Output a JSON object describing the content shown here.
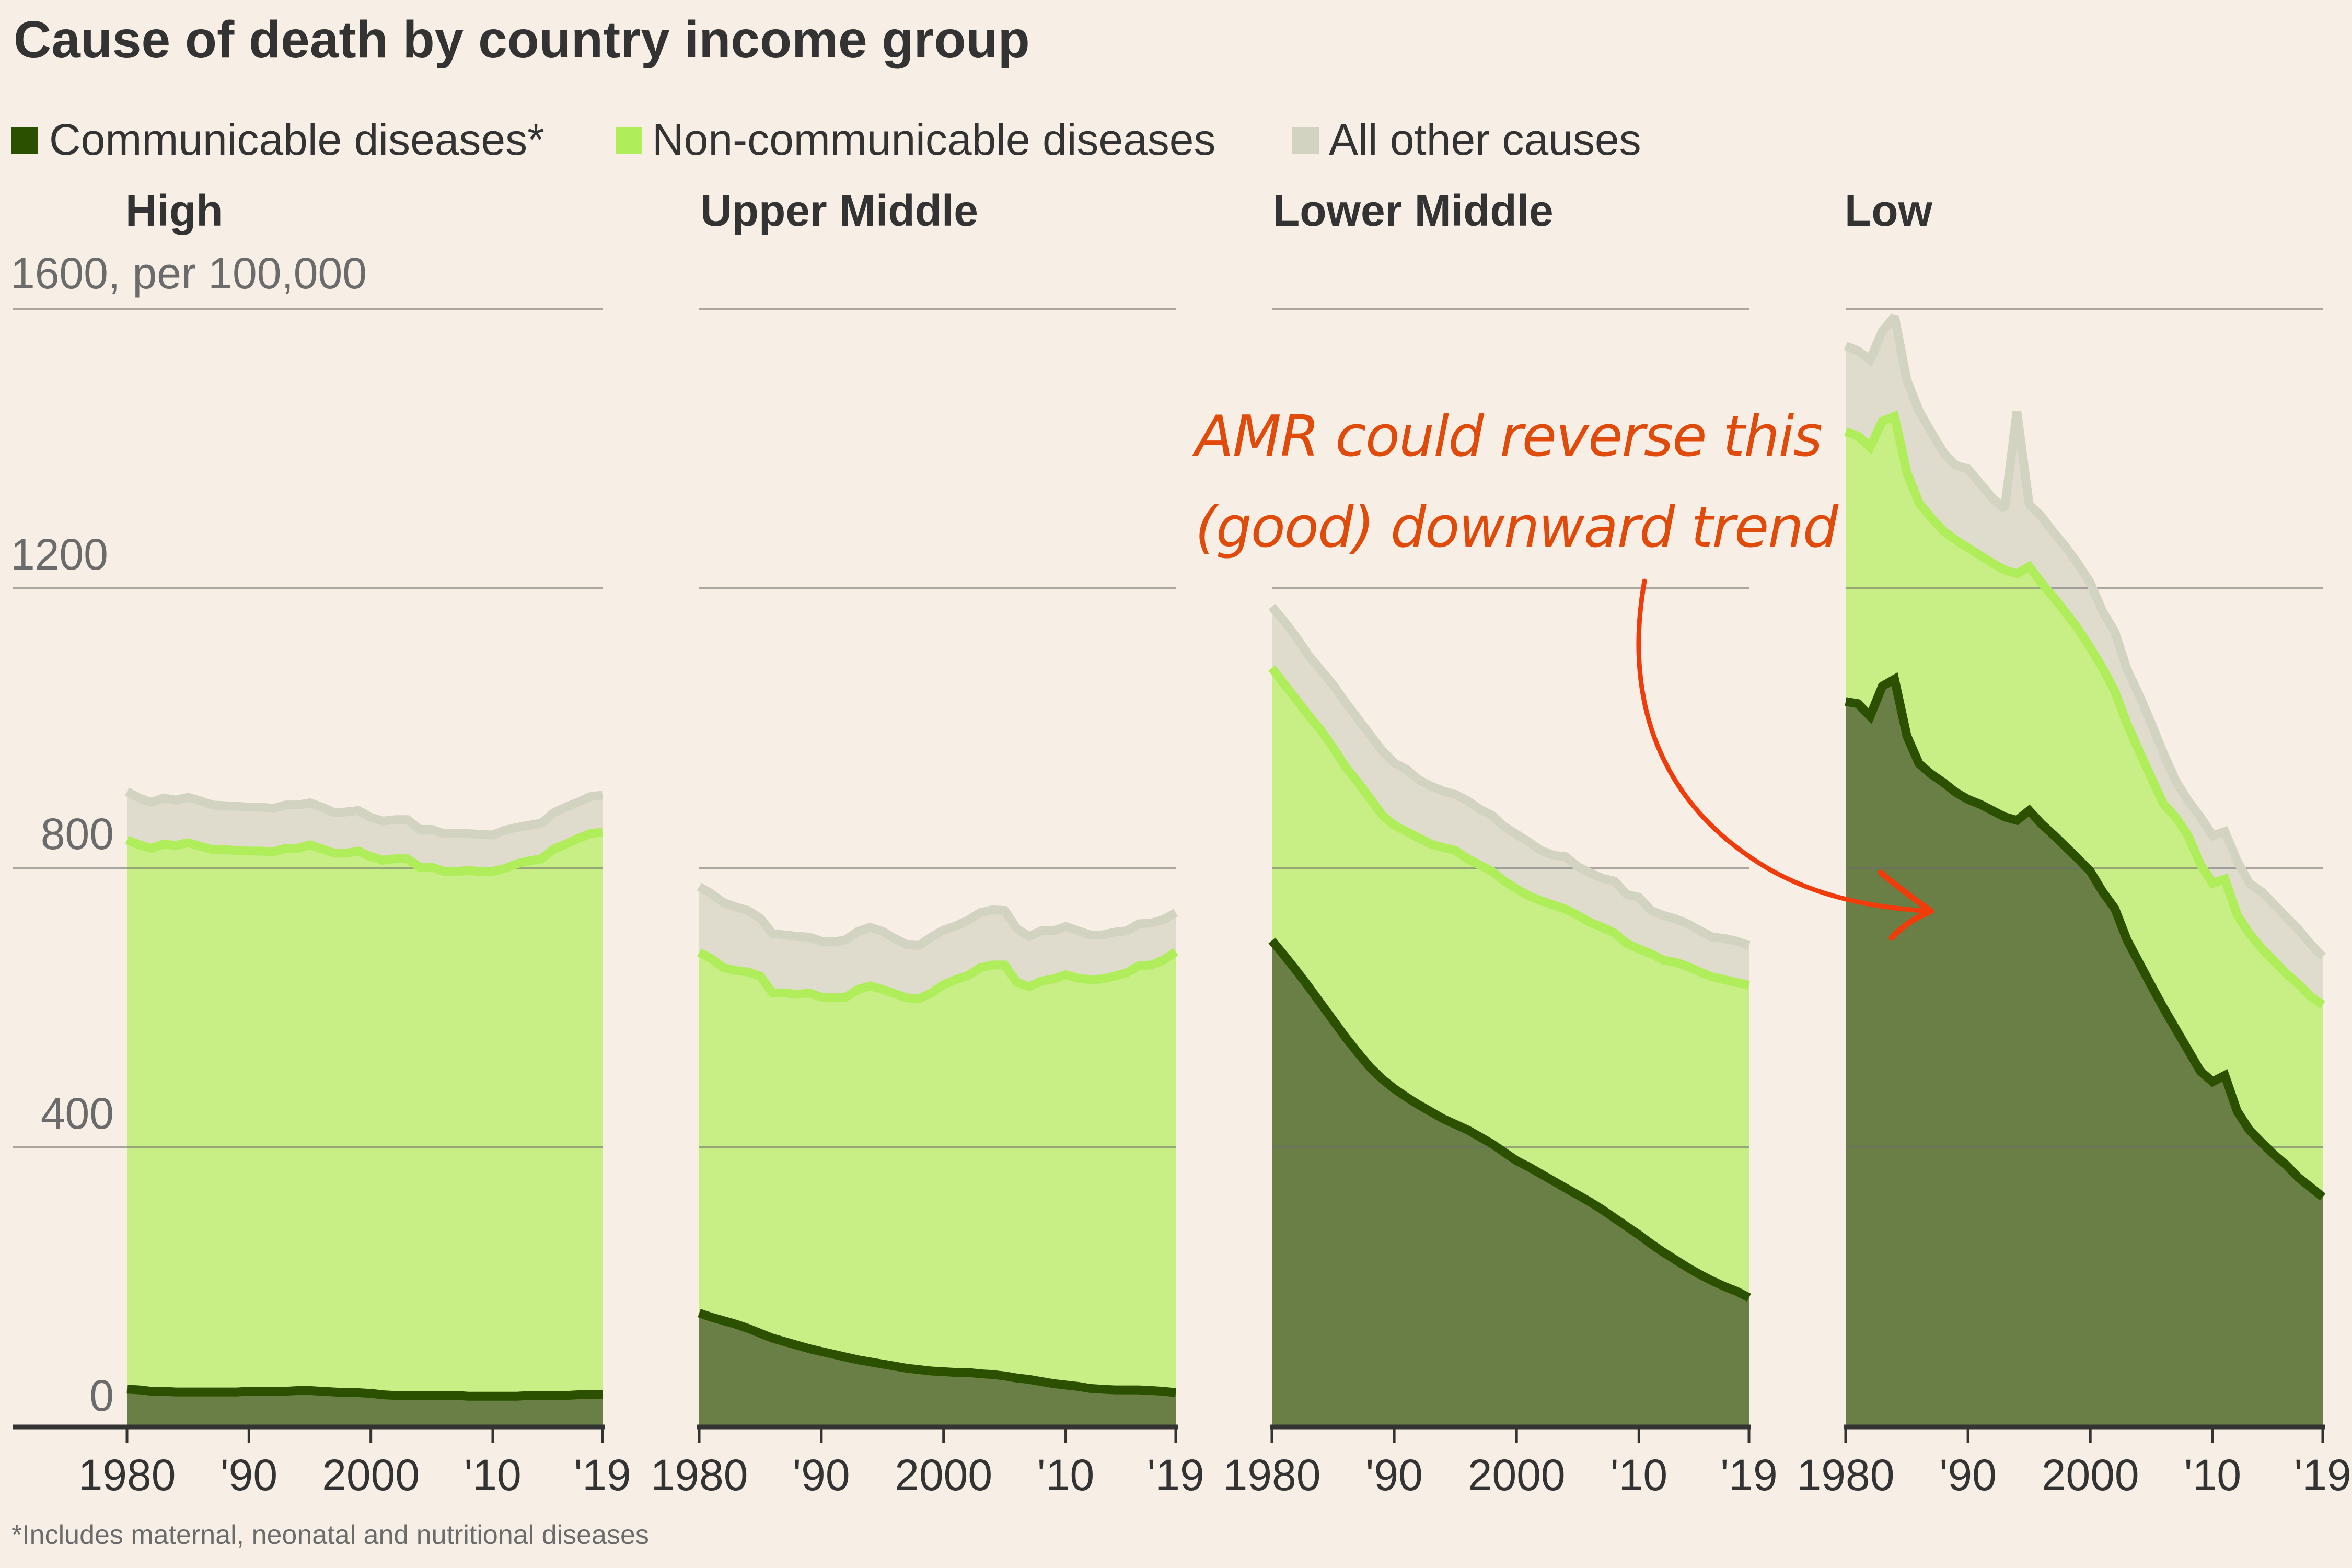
{
  "colors": {
    "background": "#F7EFE6",
    "text": "#333333",
    "muted_text": "#6B6B6B",
    "annotation": "#E04A0A",
    "arrow": "#F03C0A"
  },
  "chart_data": {
    "type": "area",
    "stacked": true,
    "title": "Cause of death by country income group",
    "ylabel": "per 100,000",
    "y_unit_label": "1600, per 100,000",
    "ylim": [
      0,
      1600
    ],
    "yticks": [
      0,
      400,
      800,
      1200,
      1600
    ],
    "ytick_labels": [
      "0",
      "400",
      "800",
      "1200",
      "1600, per 100,000"
    ],
    "grid": true,
    "legend_position": "top-left",
    "x": [
      1980,
      1981,
      1982,
      1983,
      1984,
      1985,
      1986,
      1987,
      1988,
      1989,
      1990,
      1991,
      1992,
      1993,
      1994,
      1995,
      1996,
      1997,
      1998,
      1999,
      2000,
      2001,
      2002,
      2003,
      2004,
      2005,
      2006,
      2007,
      2008,
      2009,
      2010,
      2011,
      2012,
      2013,
      2014,
      2015,
      2016,
      2017,
      2018,
      2019
    ],
    "xticks": [
      1980,
      1990,
      2000,
      2010,
      2019
    ],
    "xtick_labels": [
      "1980",
      "'90",
      "2000",
      "'10",
      "'19"
    ],
    "legend": [
      {
        "key": "communicable",
        "label": "Communicable diseases*",
        "area_color": "#6A7F45",
        "line_color": "#2B5000",
        "swatch_color": "#2B5000"
      },
      {
        "key": "noncommunicable",
        "label": "Non-communicable diseases",
        "area_color": "#C8EF86",
        "line_color": "#AFEE5A",
        "swatch_color": "#AFEE5A"
      },
      {
        "key": "other",
        "label": "All other causes",
        "area_color": "#DFDCCE",
        "line_color": "#D3D3C2",
        "swatch_color": "#D3D3C2"
      }
    ],
    "value_note": "Series values are cumulative stacked levels: communicable, communicable+non-communicable, and total (all causes)",
    "panels": [
      {
        "name": "High",
        "communicable_top": [
          54,
          53,
          51,
          51,
          50,
          50,
          50,
          50,
          50,
          50,
          51,
          51,
          51,
          51,
          52,
          52,
          51,
          50,
          49,
          49,
          48,
          46,
          45,
          45,
          45,
          45,
          45,
          45,
          44,
          44,
          44,
          44,
          44,
          45,
          45,
          45,
          45,
          46,
          46,
          46
        ],
        "noncommunicable_top": [
          840,
          833,
          828,
          834,
          832,
          836,
          831,
          826,
          826,
          825,
          824,
          824,
          823,
          828,
          828,
          833,
          827,
          821,
          821,
          824,
          816,
          811,
          813,
          813,
          801,
          801,
          795,
          795,
          796,
          795,
          795,
          799,
          806,
          810,
          813,
          827,
          834,
          842,
          849,
          851
        ],
        "total": [
          909,
          900,
          894,
          900,
          897,
          901,
          896,
          890,
          889,
          888,
          887,
          887,
          885,
          890,
          890,
          893,
          887,
          879,
          880,
          882,
          872,
          867,
          869,
          869,
          855,
          855,
          849,
          849,
          849,
          848,
          847,
          854,
          858,
          861,
          864,
          879,
          887,
          894,
          902,
          904
        ]
      },
      {
        "name": "Upper Middle",
        "communicable_top": [
          163,
          157,
          152,
          147,
          141,
          134,
          127,
          122,
          117,
          112,
          108,
          104,
          100,
          96,
          93,
          90,
          87,
          84,
          82,
          80,
          79,
          78,
          78,
          76,
          75,
          73,
          70,
          68,
          65,
          62,
          60,
          58,
          55,
          54,
          53,
          53,
          53,
          52,
          51,
          49
        ],
        "noncommunicable_top": [
          679,
          670,
          657,
          653,
          651,
          645,
          621,
          621,
          619,
          621,
          615,
          614,
          615,
          626,
          631,
          626,
          620,
          614,
          613,
          621,
          633,
          640,
          646,
          657,
          661,
          661,
          636,
          630,
          638,
          641,
          647,
          642,
          640,
          641,
          645,
          650,
          660,
          661,
          668,
          680
        ],
        "total": [
          773,
          763,
          750,
          744,
          739,
          728,
          706,
          704,
          702,
          701,
          695,
          694,
          697,
          709,
          715,
          709,
          699,
          690,
          689,
          701,
          711,
          717,
          725,
          736,
          740,
          739,
          713,
          702,
          710,
          710,
          716,
          710,
          704,
          704,
          708,
          710,
          720,
          721,
          726,
          736
        ]
      },
      {
        "name": "Lower Middle",
        "communicable_top": [
          696,
          675,
          653,
          630,
          606,
          582,
          558,
          536,
          515,
          498,
          484,
          472,
          461,
          451,
          441,
          433,
          425,
          415,
          405,
          393,
          381,
          372,
          362,
          352,
          342,
          332,
          322,
          311,
          299,
          287,
          275,
          262,
          250,
          239,
          228,
          218,
          209,
          201,
          194,
          185
        ],
        "noncommunicable_top": [
          1086,
          1063,
          1041,
          1018,
          997,
          972,
          945,
          923,
          900,
          876,
          861,
          852,
          843,
          834,
          829,
          825,
          813,
          804,
          795,
          781,
          770,
          760,
          753,
          747,
          741,
          732,
          722,
          715,
          707,
          692,
          684,
          677,
          668,
          665,
          659,
          651,
          644,
          640,
          636,
          632
        ],
        "total": [
          1174,
          1153,
          1130,
          1104,
          1083,
          1062,
          1037,
          1014,
          991,
          968,
          950,
          941,
          926,
          917,
          910,
          905,
          896,
          884,
          875,
          859,
          848,
          837,
          825,
          818,
          816,
          802,
          793,
          785,
          781,
          762,
          758,
          739,
          732,
          727,
          720,
          710,
          701,
          699,
          695,
          689
        ]
      },
      {
        "name": "Low",
        "communicable_top": [
          1038,
          1035,
          1017,
          1060,
          1070,
          989,
          949,
          934,
          922,
          908,
          898,
          891,
          882,
          873,
          868,
          882,
          863,
          847,
          830,
          813,
          795,
          766,
          742,
          697,
          664,
          631,
          599,
          569,
          539,
          509,
          494,
          503,
          452,
          425,
          407,
          390,
          375,
          357,
          343,
          329
        ],
        "noncommunicable_top": [
          1424,
          1418,
          1402,
          1439,
          1446,
          1366,
          1322,
          1301,
          1282,
          1269,
          1258,
          1247,
          1236,
          1226,
          1221,
          1231,
          1208,
          1187,
          1165,
          1142,
          1115,
          1086,
          1053,
          1006,
          967,
          928,
          891,
          872,
          846,
          805,
          778,
          784,
          733,
          706,
          685,
          667,
          649,
          634,
          616,
          604
        ],
        "total": [
          1547,
          1540,
          1527,
          1568,
          1589,
          1498,
          1454,
          1423,
          1394,
          1376,
          1371,
          1350,
          1329,
          1314,
          1453,
          1320,
          1303,
          1280,
          1259,
          1235,
          1208,
          1167,
          1138,
          1084,
          1047,
          1006,
          963,
          924,
          896,
          873,
          846,
          852,
          810,
          778,
          766,
          748,
          730,
          712,
          691,
          673
        ]
      }
    ],
    "annotation": {
      "text_lines": [
        "AMR could reverse this",
        "(good) downward trend"
      ],
      "points_to": "Low income group communicable diseases area"
    },
    "footnote": "*Includes maternal, neonatal and nutritional diseases"
  }
}
